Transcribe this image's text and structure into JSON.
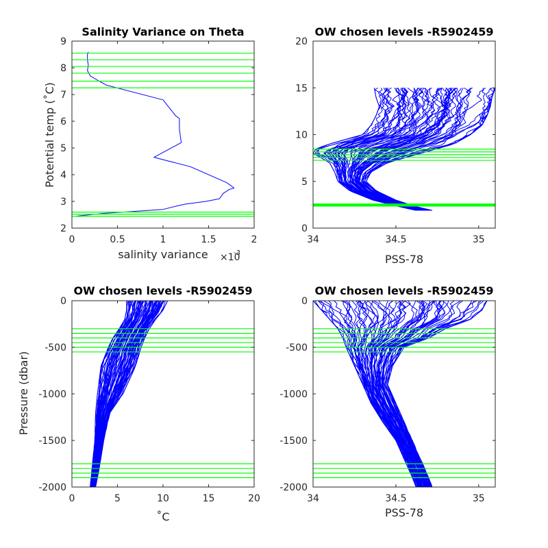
{
  "colors": {
    "profile": "#0000ff",
    "levels": "#00ff00",
    "axis": "#262626"
  },
  "chart_data": [
    {
      "type": "line",
      "title": "Salinity Variance on Theta",
      "xlabel": "salinity variance",
      "xlabel_exponent_base": "×10",
      "xlabel_exponent_power": "-3",
      "ylabel": "Potential temp (˚C)",
      "xlim": [
        0,
        2
      ],
      "ylim": [
        2,
        9
      ],
      "xticks": [
        "0",
        "0.5",
        "1",
        "1.5",
        "2"
      ],
      "yticks": [
        "2",
        "3",
        "4",
        "5",
        "6",
        "7",
        "8",
        "9"
      ],
      "x_multiplier": 0.001,
      "series": [
        {
          "x": [
            0.05,
            0.35,
            1.0,
            1.18,
            1.25,
            1.47,
            1.62,
            1.66,
            1.73,
            1.78,
            1.7,
            1.3,
            0.9,
            1.2,
            1.18,
            1.18,
            1.14,
            1.0,
            0.38,
            0.3,
            0.2,
            0.17,
            0.18,
            0.17,
            0.17,
            0.18
          ],
          "y": [
            2.45,
            2.55,
            2.7,
            2.85,
            2.9,
            3.0,
            3.1,
            3.3,
            3.45,
            3.5,
            3.7,
            4.3,
            4.65,
            5.2,
            5.7,
            6.1,
            6.2,
            6.8,
            7.35,
            7.5,
            7.7,
            7.9,
            8.1,
            8.3,
            8.5,
            8.6
          ]
        }
      ],
      "levels": [
        2.44,
        2.52,
        2.6,
        7.25,
        7.5,
        7.8,
        8.05,
        8.3,
        8.55
      ]
    },
    {
      "type": "line",
      "title": "OW chosen levels -R5902459",
      "xlabel": "PSS-78",
      "xlim": [
        34,
        35.1
      ],
      "ylim": [
        0,
        20
      ],
      "xticks": [
        "34",
        "34.5",
        "35"
      ],
      "yticks": [
        "0",
        "5",
        "10",
        "15",
        "20"
      ],
      "x_tick_values": [
        34,
        34.5,
        35
      ],
      "levels": [
        2.35,
        2.42,
        2.5,
        2.58,
        7.25,
        7.55,
        7.85,
        8.15,
        8.45
      ],
      "envelope": {
        "y": [
          1.9,
          2.3,
          3.0,
          4.0,
          5.0,
          6.0,
          7.0,
          7.5,
          8.0,
          8.5,
          9.0,
          10.0,
          11.0,
          12.0,
          13.0,
          14.0,
          15.0
        ],
        "x_min": [
          34.62,
          34.52,
          34.36,
          34.22,
          34.15,
          34.13,
          34.1,
          34.05,
          34.0,
          34.02,
          34.1,
          34.3,
          34.35,
          34.38,
          34.4,
          34.38,
          34.37
        ],
        "x_max": [
          34.72,
          34.62,
          34.5,
          34.38,
          34.32,
          34.35,
          34.45,
          34.55,
          34.65,
          34.75,
          34.85,
          34.95,
          35.02,
          35.05,
          35.07,
          35.08,
          35.1
        ]
      }
    },
    {
      "type": "line",
      "title": "OW chosen levels -R5902459",
      "xlabel": "˚C",
      "ylabel": "Pressure (dbar)",
      "xlim": [
        0,
        20
      ],
      "ylim": [
        -2000,
        0
      ],
      "xticks": [
        "0",
        "5",
        "10",
        "15",
        "20"
      ],
      "yticks": [
        "-2000",
        "-1500",
        "-1000",
        "-500",
        "0"
      ],
      "levels": [
        -300,
        -350,
        -400,
        -450,
        -500,
        -550,
        -1750,
        -1800,
        -1850,
        -1900
      ],
      "envelope": {
        "y": [
          0,
          -100,
          -200,
          -300,
          -400,
          -500,
          -700,
          -1000,
          -1200,
          -1500,
          -1800,
          -2000
        ],
        "x_min": [
          6.0,
          6.0,
          5.8,
          5.2,
          4.5,
          4.0,
          3.2,
          2.8,
          2.6,
          2.5,
          2.2,
          2.0
        ],
        "x_max": [
          10.5,
          10.0,
          9.2,
          8.5,
          8.0,
          7.6,
          7.0,
          5.6,
          4.2,
          3.5,
          3.0,
          2.6
        ]
      }
    },
    {
      "type": "line",
      "title": "OW chosen levels -R5902459",
      "xlabel": "PSS-78",
      "xlim": [
        34,
        35.1
      ],
      "ylim": [
        -2000,
        0
      ],
      "xticks": [
        "34",
        "34.5",
        "35"
      ],
      "yticks": [
        "-2000",
        "-1500",
        "-1000",
        "-500",
        "0"
      ],
      "x_tick_values": [
        34,
        34.5,
        35
      ],
      "levels": [
        -300,
        -350,
        -400,
        -450,
        -500,
        -550,
        -1750,
        -1800,
        -1850,
        -1900
      ],
      "envelope": {
        "y": [
          0,
          -100,
          -200,
          -300,
          -400,
          -500,
          -700,
          -900,
          -1100,
          -1300,
          -1500,
          -1700,
          -1900,
          -2000
        ],
        "x_min": [
          34.0,
          34.05,
          34.1,
          34.15,
          34.18,
          34.2,
          34.25,
          34.3,
          34.35,
          34.42,
          34.5,
          34.55,
          34.6,
          34.62
        ],
        "x_max": [
          35.05,
          35.02,
          34.95,
          34.8,
          34.7,
          34.55,
          34.48,
          34.45,
          34.5,
          34.55,
          34.6,
          34.65,
          34.7,
          34.72
        ]
      }
    }
  ]
}
